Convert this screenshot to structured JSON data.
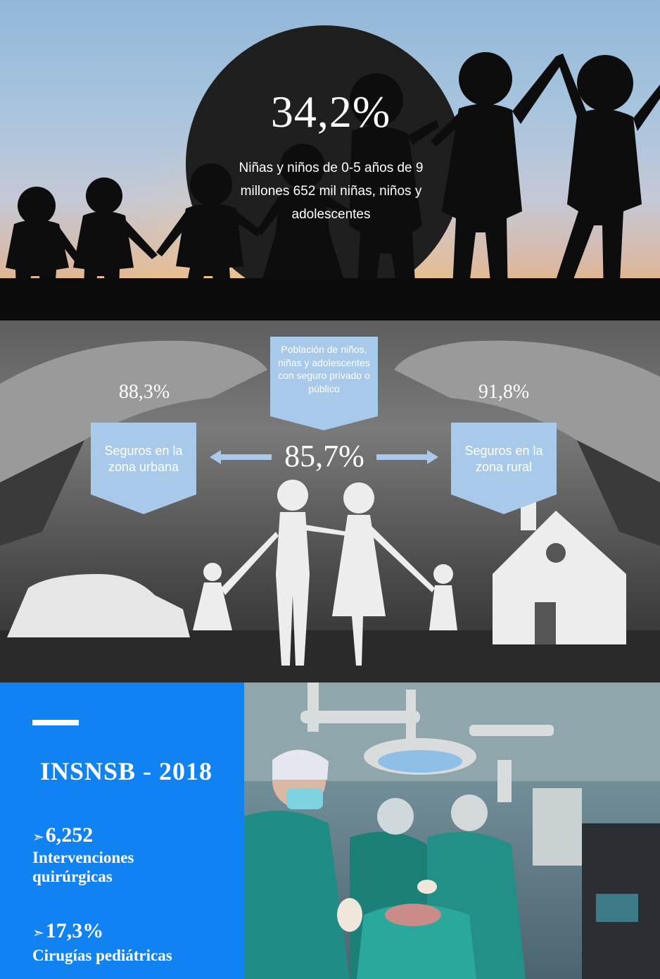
{
  "section1": {
    "stat": "34,2%",
    "description": "Niñas y niños de 0-5 años de 9 millones 652 mil niñas, niños y adolescentes"
  },
  "section2": {
    "center_label": "Población de niños, niñas y adolescentes con seguro privado o público",
    "center_value": "85,7%",
    "left_value": "88,3%",
    "left_label": "Seguros en la zona urbana",
    "right_value": "91,8%",
    "right_label": "Seguros en la zona rural",
    "accent_color": "#a8c9ea"
  },
  "section3": {
    "heading": "INSNSB - 2018",
    "bullet_icon": "arrow-icon",
    "stats": [
      {
        "arrow": "➣",
        "value": "6,252",
        "label": "Intervenciones quirúrgicas"
      },
      {
        "arrow": "➣",
        "value": "17,3%",
        "label": "Cirugías pediátricas"
      }
    ],
    "panel_color": "#1182f2"
  }
}
